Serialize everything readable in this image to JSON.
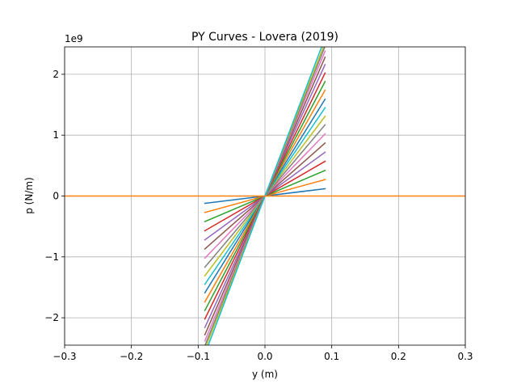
{
  "chart_data": {
    "type": "line",
    "title": "PY Curves - Lovera (2019)",
    "xlabel": "y (m)",
    "ylabel": "p (N/m)",
    "y_offset_text": "1e9",
    "xlim": [
      -0.3,
      0.3
    ],
    "ylim": [
      -2.45,
      2.45
    ],
    "y_unit_scale": 1000000000,
    "grid": true,
    "x_ticks": [
      -0.3,
      -0.2,
      -0.1,
      0.0,
      0.1,
      0.2,
      0.3
    ],
    "x_tick_labels": [
      "−0.3",
      "−0.2",
      "−0.1",
      "0.0",
      "0.1",
      "0.2",
      "0.3"
    ],
    "y_ticks": [
      -2,
      -1,
      0,
      1,
      2
    ],
    "y_tick_labels": [
      "−2",
      "−1",
      "0",
      "1",
      "2"
    ],
    "colors": [
      "#1f77b4",
      "#ff7f0e",
      "#2ca02c",
      "#d62728",
      "#9467bd",
      "#8c564b",
      "#e377c2",
      "#7f7f7f",
      "#bcbd22",
      "#17becf"
    ],
    "series": [
      {
        "x": [
          -0.09,
          0.09
        ],
        "y": [
          -0.12,
          0.12
        ]
      },
      {
        "x": [
          -0.09,
          0.09
        ],
        "y": [
          -0.27,
          0.27
        ]
      },
      {
        "x": [
          -0.09,
          0.09
        ],
        "y": [
          -0.42,
          0.42
        ]
      },
      {
        "x": [
          -0.09,
          0.09
        ],
        "y": [
          -0.57,
          0.57
        ]
      },
      {
        "x": [
          -0.09,
          0.09
        ],
        "y": [
          -0.72,
          0.72
        ]
      },
      {
        "x": [
          -0.09,
          0.09
        ],
        "y": [
          -0.87,
          0.87
        ]
      },
      {
        "x": [
          -0.09,
          0.09
        ],
        "y": [
          -1.02,
          1.02
        ]
      },
      {
        "x": [
          -0.09,
          0.09
        ],
        "y": [
          -1.17,
          1.17
        ]
      },
      {
        "x": [
          -0.09,
          0.09
        ],
        "y": [
          -1.31,
          1.31
        ]
      },
      {
        "x": [
          -0.09,
          0.09
        ],
        "y": [
          -1.45,
          1.45
        ]
      },
      {
        "x": [
          -0.09,
          0.09
        ],
        "y": [
          -1.59,
          1.59
        ]
      },
      {
        "x": [
          -0.09,
          0.09
        ],
        "y": [
          -1.74,
          1.74
        ]
      },
      {
        "x": [
          -0.09,
          0.09
        ],
        "y": [
          -1.88,
          1.88
        ]
      },
      {
        "x": [
          -0.09,
          0.09
        ],
        "y": [
          -2.02,
          2.02
        ]
      },
      {
        "x": [
          -0.09,
          0.09
        ],
        "y": [
          -2.16,
          2.16
        ]
      },
      {
        "x": [
          -0.09,
          0.09
        ],
        "y": [
          -2.28,
          2.28
        ]
      },
      {
        "x": [
          -0.09,
          0.09
        ],
        "y": [
          -2.38,
          2.38
        ]
      },
      {
        "x": [
          -0.09,
          0.09
        ],
        "y": [
          -2.46,
          2.46
        ]
      },
      {
        "x": [
          -0.09,
          0.09
        ],
        "y": [
          -2.52,
          2.52
        ]
      },
      {
        "x": [
          -0.09,
          0.09
        ],
        "y": [
          -2.6,
          2.6
        ]
      },
      {
        "x": [
          -0.3,
          0.3
        ],
        "y": [
          0.0,
          0.0
        ],
        "color": "#ff7f0e"
      }
    ]
  }
}
